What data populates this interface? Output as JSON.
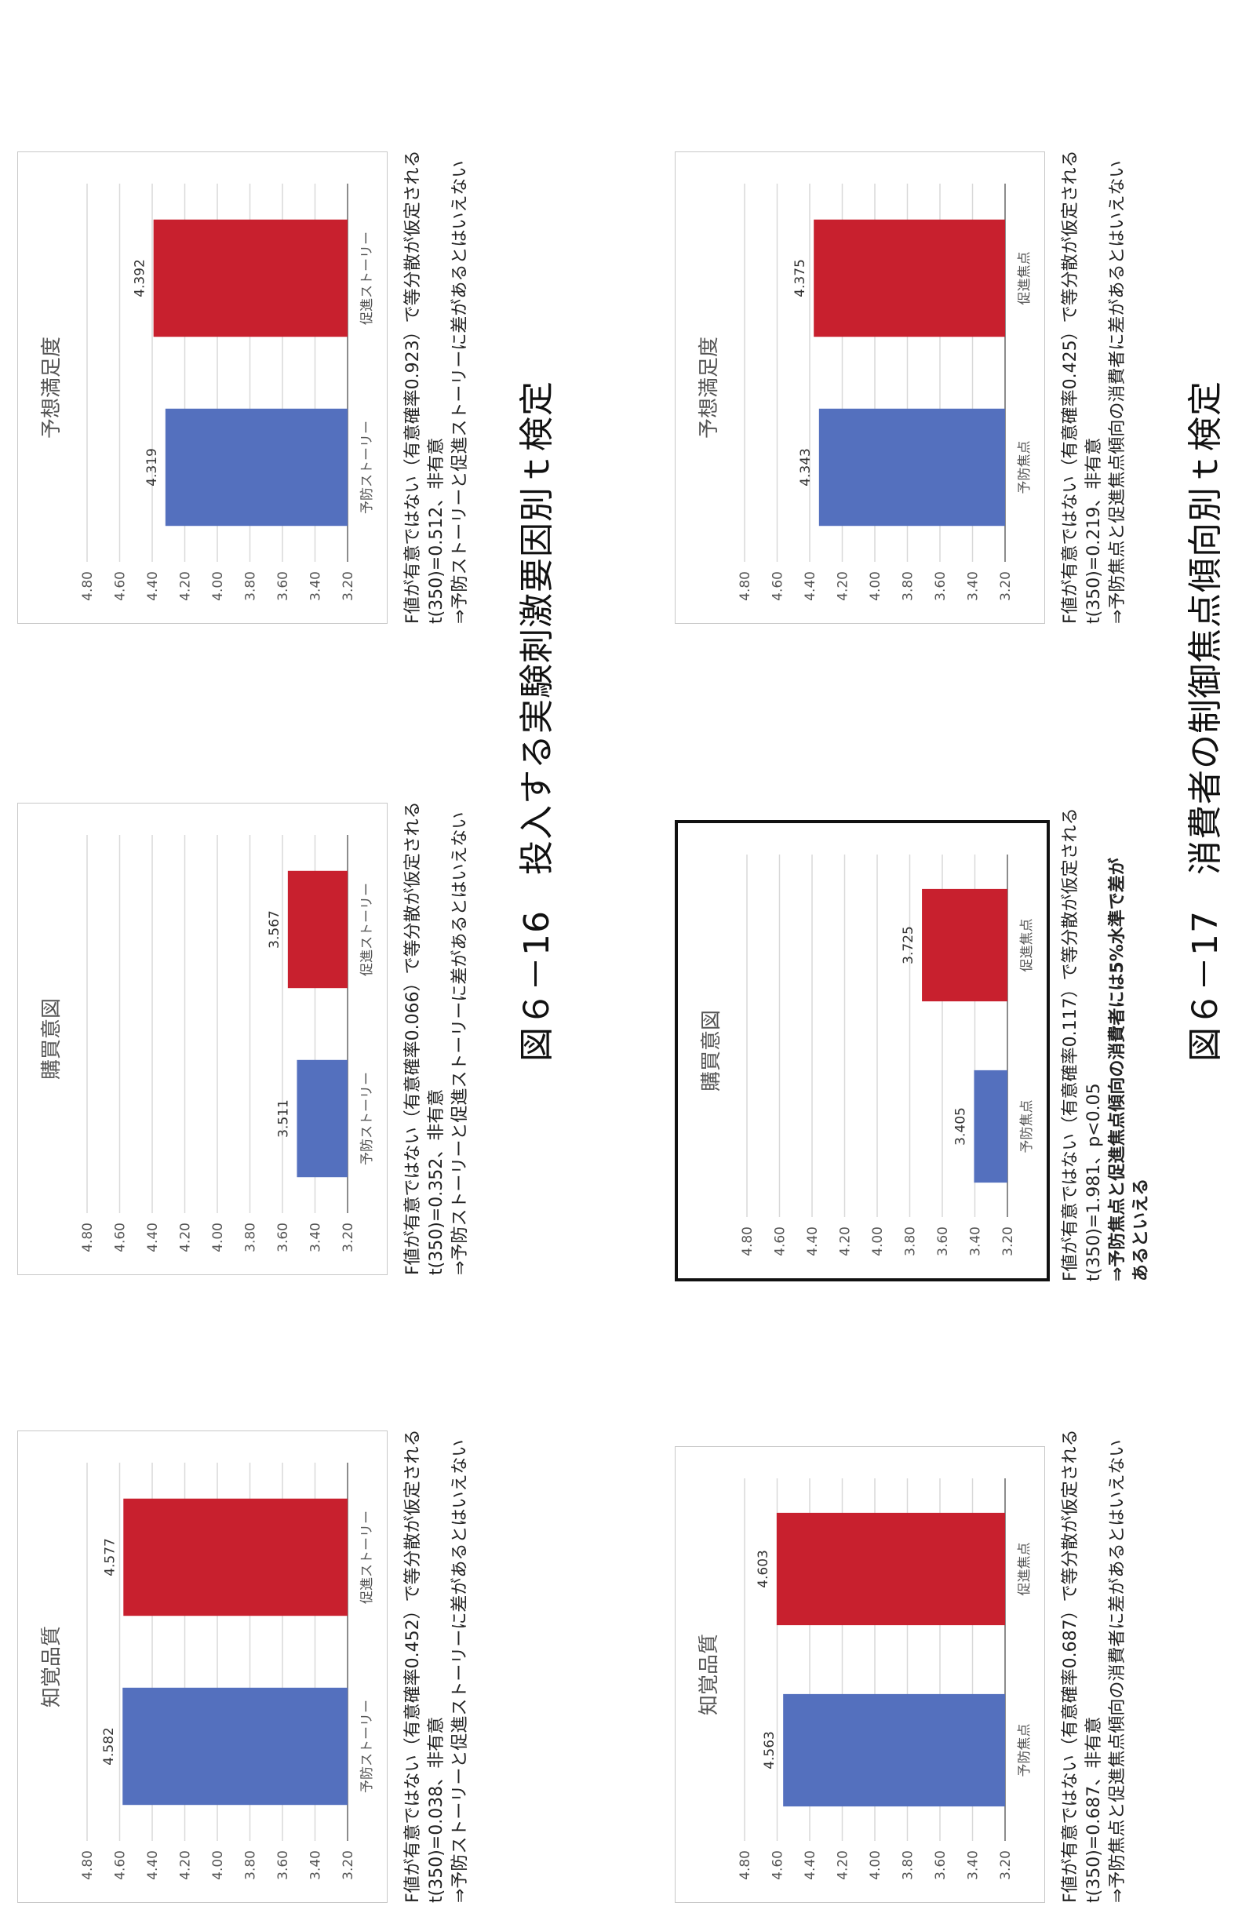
{
  "figure_16": {
    "caption": "図６－16　投入する実験刺激要因別ｔ検定",
    "notes": [
      {
        "line1": "F値が有意ではない（有意確率0.452）で等分散が仮定される",
        "line2": "t(350)=0.038、非有意",
        "line3": "⇒予防ストーリーと促進ストーリーに差があるとはいえない"
      },
      {
        "line1": "F値が有意ではない（有意確率0.066）で等分散が仮定される",
        "line2": "t(350)=0.352、非有意",
        "line3": "⇒予防ストーリーと促進ストーリーに差があるとはいえない"
      },
      {
        "line1": "F値が有意ではない（有意確率0.923）で等分散が仮定される",
        "line2": "t(350)=0.512、非有意",
        "line3": "⇒予防ストーリーと促進ストーリーに差があるとはいえない"
      }
    ]
  },
  "figure_17": {
    "caption": "図６－17　消費者の制御焦点傾向別ｔ検定",
    "notes": [
      {
        "line1": "F値が有意ではない（有意確率0.687）で等分散が仮定される",
        "line2": "t(350)=0.687、非有意",
        "line3": "⇒予防焦点と促進焦点傾向の消費者に差があるとはいえない"
      },
      {
        "line1": "F値が有意ではない（有意確率0.117）で等分散が仮定される",
        "line2": "t(350)=1.981、p<0.05",
        "line3": "⇒予防焦点と促進焦点傾向の消費者には5%水準で差があるといえる"
      },
      {
        "line1": "F値が有意ではない（有意確率0.425）で等分散が仮定される",
        "line2": "t(350)=0.219、非有意",
        "line3": "⇒予防焦点と促進焦点傾向の消費者に差があるとはいえない"
      }
    ]
  },
  "colors": {
    "blue": "#5470be",
    "red": "#c8202e",
    "grid": "#d9d9d9",
    "axis": "#8c8c8c",
    "tick": "#555555"
  },
  "chart_data": [
    {
      "type": "bar",
      "title": "知覚品質",
      "categories": [
        "予防ストーリー",
        "促進ストーリー"
      ],
      "values": [
        4.582,
        4.577
      ],
      "value_labels": [
        "4.582",
        "4.577"
      ],
      "ylim": [
        3.2,
        4.8
      ],
      "yticks": [
        "3.20",
        "3.40",
        "3.60",
        "3.80",
        "4.00",
        "4.20",
        "4.40",
        "4.60",
        "4.80"
      ],
      "grid": true
    },
    {
      "type": "bar",
      "title": "購買意図",
      "categories": [
        "予防ストーリー",
        "促進ストーリー"
      ],
      "values": [
        3.511,
        3.567
      ],
      "value_labels": [
        "3.511",
        "3.567"
      ],
      "ylim": [
        3.2,
        4.8
      ],
      "yticks": [
        "3.20",
        "3.40",
        "3.60",
        "3.80",
        "4.00",
        "4.20",
        "4.40",
        "4.60",
        "4.80"
      ],
      "grid": true
    },
    {
      "type": "bar",
      "title": "予想満足度",
      "categories": [
        "予防ストーリー",
        "促進ストーリー"
      ],
      "values": [
        4.319,
        4.392
      ],
      "value_labels": [
        "4.319",
        "4.392"
      ],
      "ylim": [
        3.2,
        4.8
      ],
      "yticks": [
        "3.20",
        "3.40",
        "3.60",
        "3.80",
        "4.00",
        "4.20",
        "4.40",
        "4.60",
        "4.80"
      ],
      "grid": true
    },
    {
      "type": "bar",
      "title": "知覚品質",
      "categories": [
        "予防焦点",
        "促進焦点"
      ],
      "values": [
        4.563,
        4.603
      ],
      "value_labels": [
        "4.563",
        "4.603"
      ],
      "ylim": [
        3.2,
        4.8
      ],
      "yticks": [
        "3.20",
        "3.40",
        "3.60",
        "3.80",
        "4.00",
        "4.20",
        "4.40",
        "4.60",
        "4.80"
      ],
      "grid": true
    },
    {
      "type": "bar",
      "title": "購買意図",
      "categories": [
        "予防焦点",
        "促進焦点"
      ],
      "values": [
        3.405,
        3.725
      ],
      "value_labels": [
        "3.405",
        "3.725"
      ],
      "ylim": [
        3.2,
        4.8
      ],
      "yticks": [
        "3.20",
        "3.40",
        "3.60",
        "3.80",
        "4.00",
        "4.20",
        "4.40",
        "4.60",
        "4.80"
      ],
      "grid": true
    },
    {
      "type": "bar",
      "title": "予想満足度",
      "categories": [
        "予防焦点",
        "促進焦点"
      ],
      "values": [
        4.343,
        4.375
      ],
      "value_labels": [
        "4.343",
        "4.375"
      ],
      "ylim": [
        3.2,
        4.8
      ],
      "yticks": [
        "3.20",
        "3.40",
        "3.60",
        "3.80",
        "4.00",
        "4.20",
        "4.40",
        "4.60",
        "4.80"
      ],
      "grid": true
    }
  ]
}
